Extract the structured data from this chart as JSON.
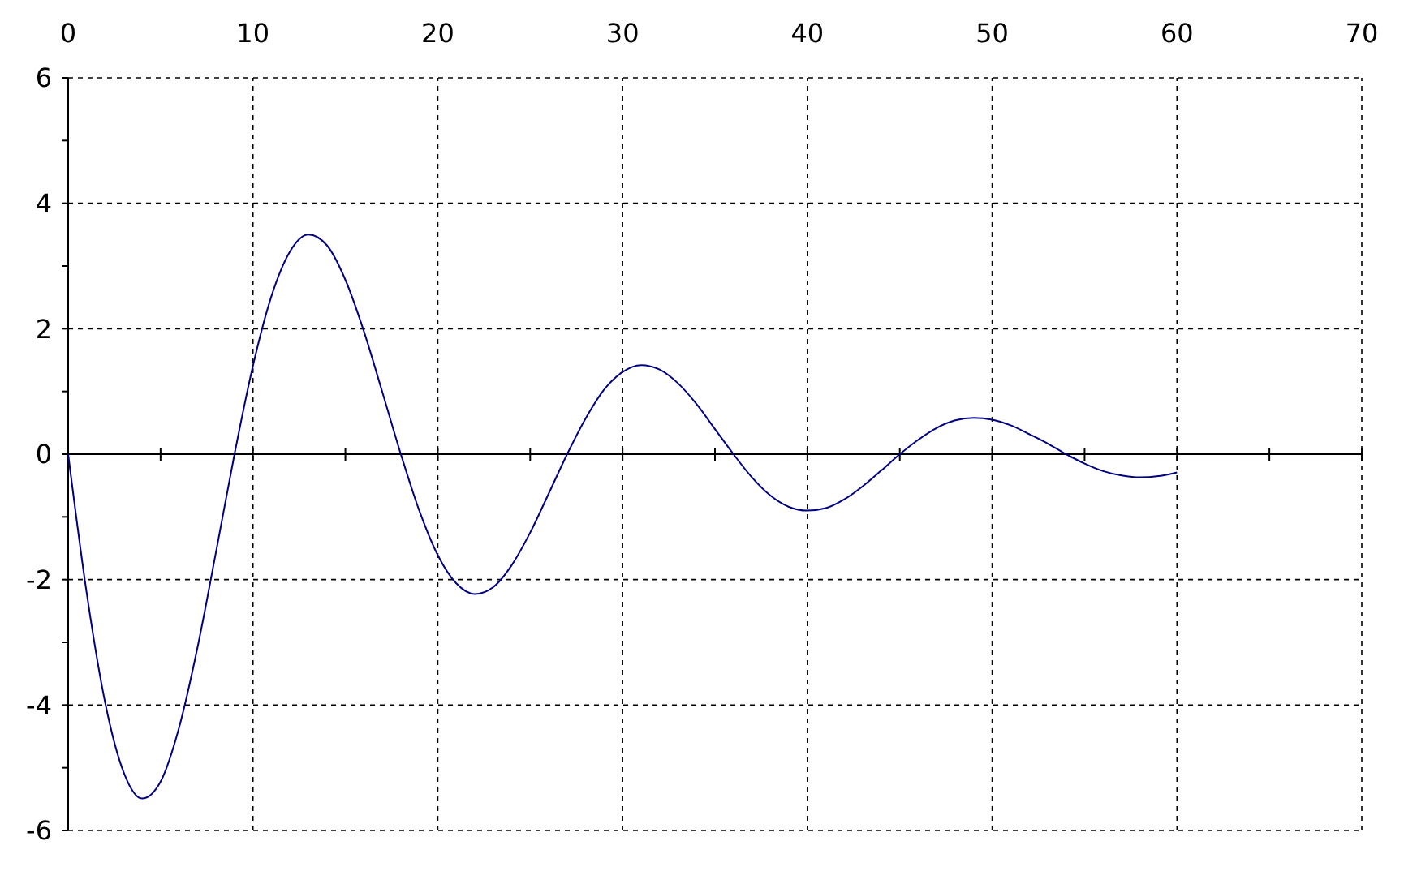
{
  "chart_data": {
    "type": "line",
    "x": [
      0,
      1,
      2,
      3,
      4,
      5,
      6,
      7,
      8,
      9,
      10,
      11,
      12,
      13,
      14,
      15,
      16,
      17,
      18,
      19,
      20,
      21,
      22,
      23,
      24,
      25,
      26,
      27,
      28,
      29,
      30,
      31,
      32,
      33,
      34,
      35,
      36,
      37,
      38,
      39,
      40,
      41,
      42,
      43,
      44,
      45,
      46,
      47,
      48,
      49,
      50,
      51,
      52,
      53,
      54,
      55,
      56,
      57,
      58,
      59,
      60
    ],
    "series": [
      {
        "color": "#000080",
        "values": [
          0,
          -2.21,
          -3.96,
          -5.07,
          -5.49,
          -5.22,
          -4.36,
          -3.08,
          -1.56,
          0,
          1.41,
          2.52,
          3.23,
          3.5,
          3.33,
          2.78,
          1.96,
          0.99,
          0,
          -0.9,
          -1.61,
          -2.06,
          -2.23,
          -2.12,
          -1.77,
          -1.25,
          -0.63,
          0,
          0.57,
          1.03,
          1.31,
          1.42,
          1.35,
          1.13,
          0.8,
          0.4,
          0,
          -0.37,
          -0.66,
          -0.84,
          -0.9,
          -0.86,
          -0.72,
          -0.51,
          -0.26,
          0,
          0.23,
          0.42,
          0.54,
          0.58,
          0.55,
          0.46,
          0.32,
          0.17,
          0,
          -0.15,
          -0.27,
          -0.34,
          -0.37,
          -0.35,
          -0.29
        ]
      }
    ],
    "xlim": [
      0,
      70
    ],
    "xticks": [
      0,
      {
        "value": 5,
        "label": null
      },
      10,
      {
        "value": 15,
        "label": null
      },
      20,
      {
        "value": 25,
        "label": null
      },
      30,
      {
        "value": 35,
        "label": null
      },
      40,
      {
        "value": 45,
        "label": null
      },
      50,
      {
        "value": 55,
        "label": null
      },
      60,
      {
        "value": 65,
        "label": null
      },
      70
    ],
    "ylim": [
      -6,
      6
    ],
    "yticks": [
      -6,
      {
        "value": -5,
        "label": null
      },
      -4,
      {
        "value": -3,
        "label": null
      },
      -2,
      {
        "value": -1,
        "label": null
      },
      0,
      {
        "value": 1,
        "label": null
      },
      2,
      {
        "value": 3,
        "label": null
      },
      4,
      {
        "value": 5,
        "label": null
      },
      6
    ],
    "grid": true,
    "marker": "none",
    "line_style": "solid"
  }
}
